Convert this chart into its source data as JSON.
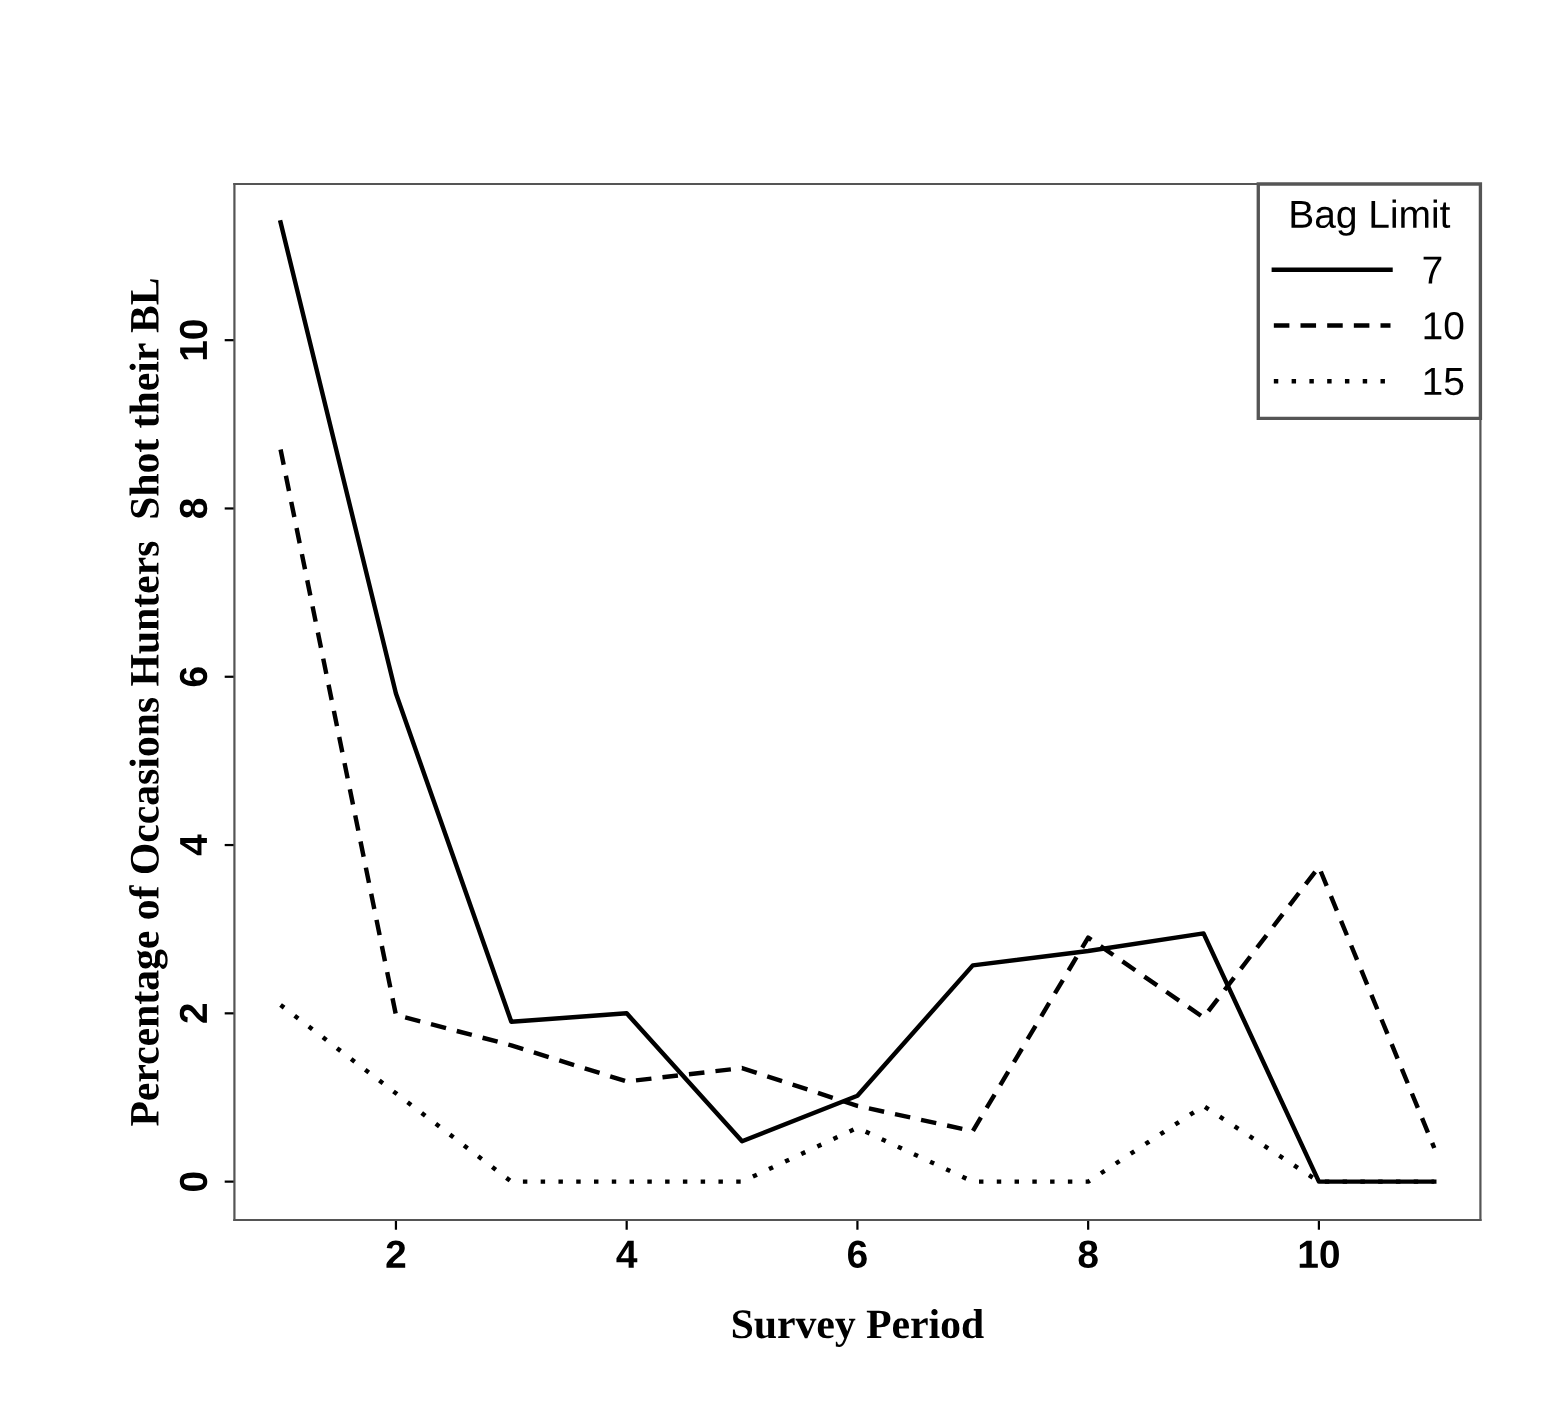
{
  "chart_data": {
    "type": "line",
    "xlabel": "Survey Period",
    "ylabel": "Percentage of Occasions Hunters  Shot their BL",
    "legend_title": "Bag Limit",
    "legend": "top right",
    "grid": false,
    "x": [
      1,
      2,
      3,
      4,
      5,
      6,
      7,
      8,
      9,
      10,
      11
    ],
    "xlim": [
      0.6,
      11.4
    ],
    "xticks": [
      2,
      4,
      6,
      8,
      10
    ],
    "ylim": [
      -0.456,
      11.856
    ],
    "yticks": [
      0,
      2,
      4,
      6,
      8,
      10
    ],
    "series": [
      {
        "name": "7",
        "color": "#000000",
        "line_style": "solid",
        "values": [
          11.4,
          5.8,
          1.9,
          2.0,
          0.48,
          1.02,
          2.57,
          2.74,
          2.95,
          0,
          0
        ]
      },
      {
        "name": "10",
        "color": "#000000",
        "line_style": "dashed",
        "values": [
          8.7,
          1.98,
          1.62,
          1.19,
          1.35,
          0.9,
          0.6,
          2.9,
          1.95,
          3.74,
          0.4
        ]
      },
      {
        "name": "15",
        "color": "#000000",
        "line_style": "dotted",
        "values": [
          2.1,
          1.05,
          0,
          0,
          0,
          0.64,
          0,
          0,
          0.9,
          0,
          0
        ]
      }
    ]
  }
}
